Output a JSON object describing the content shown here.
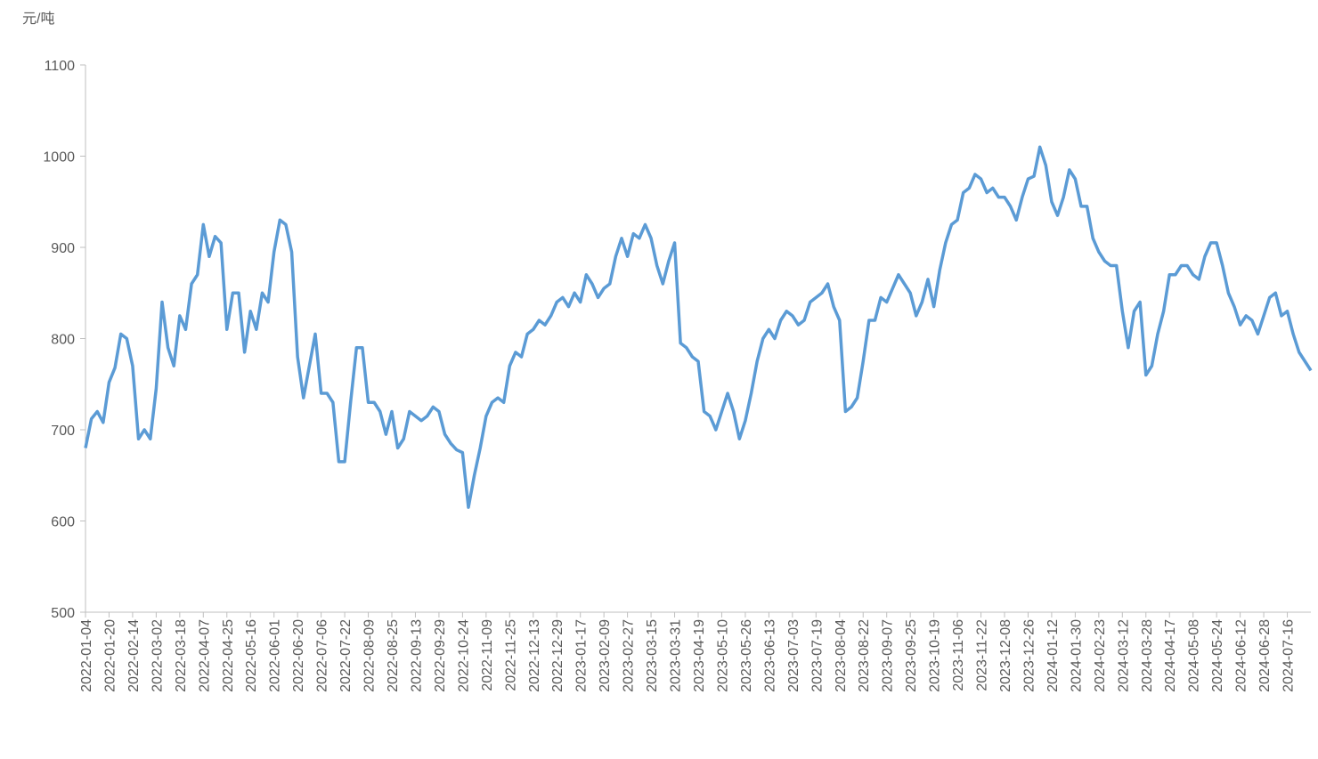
{
  "chart_data": {
    "type": "line",
    "y_label": "元/吨",
    "categories": [
      "2022-01-04",
      null,
      null,
      null,
      "2022-01-20",
      null,
      null,
      null,
      "2022-02-14",
      null,
      null,
      null,
      "2022-03-02",
      null,
      null,
      null,
      "2022-03-18",
      null,
      null,
      null,
      "2022-04-07",
      null,
      null,
      null,
      "2022-04-25",
      null,
      null,
      null,
      "2022-05-16",
      null,
      null,
      null,
      "2022-06-01",
      null,
      null,
      null,
      "2022-06-20",
      null,
      null,
      null,
      "2022-07-06",
      null,
      null,
      null,
      "2022-07-22",
      null,
      null,
      null,
      "2022-08-09",
      null,
      null,
      null,
      "2022-08-25",
      null,
      null,
      null,
      "2022-09-13",
      null,
      null,
      null,
      "2022-09-29",
      null,
      null,
      null,
      "2022-10-24",
      null,
      null,
      null,
      "2022-11-09",
      null,
      null,
      null,
      "2022-11-25",
      null,
      null,
      null,
      "2022-12-13",
      null,
      null,
      null,
      "2022-12-29",
      null,
      null,
      null,
      "2023-01-17",
      null,
      null,
      null,
      "2023-02-09",
      null,
      null,
      null,
      "2023-02-27",
      null,
      null,
      null,
      "2023-03-15",
      null,
      null,
      null,
      "2023-03-31",
      null,
      null,
      null,
      "2023-04-19",
      null,
      null,
      null,
      "2023-05-10",
      null,
      null,
      null,
      "2023-05-26",
      null,
      null,
      null,
      "2023-06-13",
      null,
      null,
      null,
      "2023-07-03",
      null,
      null,
      null,
      "2023-07-19",
      null,
      null,
      null,
      "2023-08-04",
      null,
      null,
      null,
      "2023-08-22",
      null,
      null,
      null,
      "2023-09-07",
      null,
      null,
      null,
      "2023-09-25",
      null,
      null,
      null,
      "2023-10-19",
      null,
      null,
      null,
      "2023-11-06",
      null,
      null,
      null,
      "2023-11-22",
      null,
      null,
      null,
      "2023-12-08",
      null,
      null,
      null,
      "2023-12-26",
      null,
      null,
      null,
      "2024-01-12",
      null,
      null,
      null,
      "2024-01-30",
      null,
      null,
      null,
      "2024-02-23",
      null,
      null,
      null,
      "2024-03-12",
      null,
      null,
      null,
      "2024-03-28",
      null,
      null,
      null,
      "2024-04-17",
      null,
      null,
      null,
      "2024-05-08",
      null,
      null,
      null,
      "2024-05-24",
      null,
      null,
      null,
      "2024-06-12",
      null,
      null,
      null,
      "2024-06-28",
      null,
      null,
      null,
      "2024-07-16",
      null,
      null,
      null,
      null
    ],
    "values": [
      680,
      712,
      720,
      708,
      752,
      768,
      805,
      800,
      770,
      690,
      700,
      690,
      745,
      840,
      790,
      770,
      825,
      810,
      860,
      870,
      925,
      890,
      912,
      905,
      810,
      850,
      850,
      785,
      830,
      810,
      850,
      840,
      895,
      930,
      925,
      895,
      780,
      735,
      770,
      805,
      740,
      740,
      730,
      665,
      665,
      730,
      790,
      790,
      730,
      730,
      720,
      695,
      720,
      680,
      690,
      720,
      715,
      710,
      715,
      725,
      720,
      695,
      685,
      678,
      675,
      615,
      650,
      680,
      715,
      730,
      735,
      730,
      770,
      785,
      780,
      805,
      810,
      820,
      815,
      825,
      840,
      845,
      835,
      850,
      840,
      870,
      860,
      845,
      855,
      860,
      890,
      910,
      890,
      915,
      910,
      925,
      910,
      880,
      860,
      885,
      905,
      795,
      790,
      780,
      775,
      720,
      715,
      700,
      720,
      740,
      720,
      690,
      710,
      740,
      775,
      800,
      810,
      800,
      820,
      830,
      825,
      815,
      820,
      840,
      845,
      850,
      860,
      835,
      820,
      720,
      725,
      735,
      775,
      820,
      820,
      845,
      840,
      855,
      870,
      860,
      850,
      825,
      840,
      865,
      835,
      875,
      905,
      925,
      930,
      960,
      965,
      980,
      975,
      960,
      965,
      955,
      955,
      945,
      930,
      955,
      975,
      978,
      1010,
      990,
      950,
      935,
      955,
      985,
      975,
      945,
      945,
      910,
      895,
      885,
      880,
      880,
      830,
      790,
      830,
      840,
      760,
      770,
      805,
      830,
      870,
      870,
      880,
      880,
      870,
      865,
      890,
      905,
      905,
      880,
      850,
      835,
      815,
      825,
      820,
      805,
      825,
      845,
      850,
      825,
      830,
      805,
      785,
      775,
      765
    ],
    "color": "#5b9bd5",
    "ylim": [
      500,
      1100
    ],
    "yticks": [
      500,
      600,
      700,
      800,
      900,
      1000,
      1100
    ]
  }
}
